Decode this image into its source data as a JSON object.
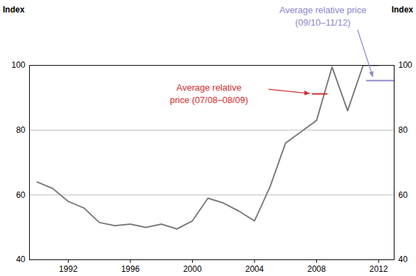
{
  "chart_data": {
    "type": "line",
    "y_label": "Index",
    "x": [
      1990,
      1991,
      1992,
      1993,
      1994,
      1995,
      1996,
      1997,
      1998,
      1999,
      2000,
      2001,
      2002,
      2003,
      2004,
      2005,
      2006,
      2007,
      2008,
      2009,
      2010,
      2011,
      2012
    ],
    "values": [
      64,
      62,
      58,
      56,
      51.5,
      50.5,
      51,
      50,
      51,
      49.5,
      52,
      59,
      57.5,
      55,
      52,
      62.5,
      76,
      79.5,
      83,
      99.5,
      86,
      100,
      100
    ],
    "color": "#7a7a7a",
    "xlim": [
      1989.5,
      2013
    ],
    "xticks": [
      1992,
      1996,
      2000,
      2004,
      2008,
      2012
    ],
    "ylim": [
      40,
      100
    ],
    "yticks": [
      40,
      60,
      80,
      100
    ],
    "grid": true,
    "annotations": [
      {
        "label": "Average relative\nprice (07/08–08/09)",
        "x": [
          2007.7,
          2008.7
        ],
        "y": 91.2,
        "color": "#d42a2a"
      },
      {
        "label": "Average relative price\n(09/10–11/12)",
        "x": [
          2011.2,
          2013
        ],
        "y": 95.3,
        "color": "#8a85cf"
      }
    ]
  }
}
